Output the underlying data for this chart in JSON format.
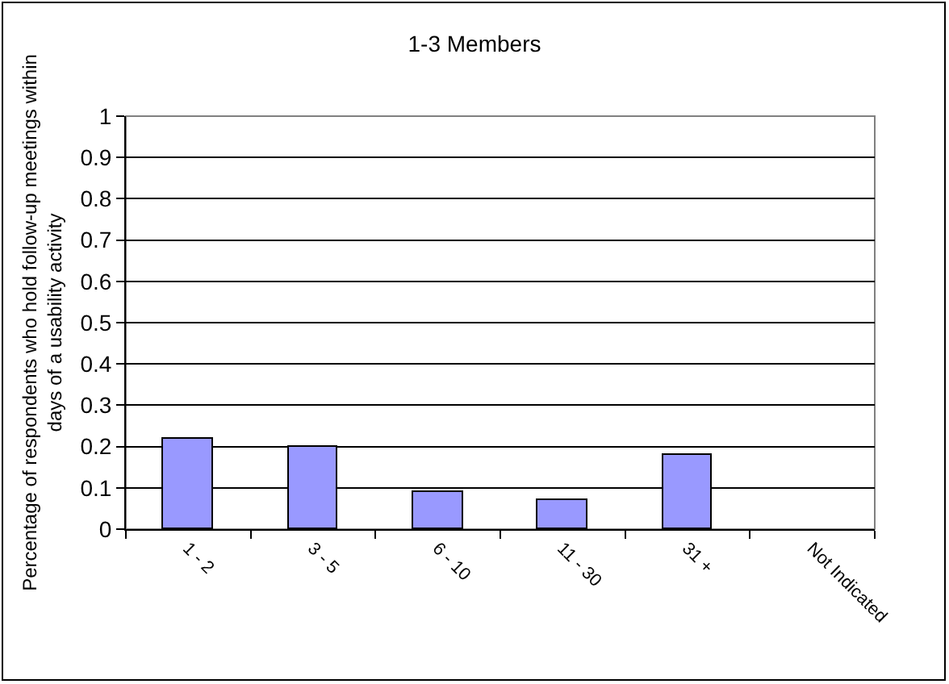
{
  "chart_data": {
    "type": "bar",
    "title": "1-3 Members",
    "ylabel": "Percentage of respondents who hold follow-up meetings within days of a usability activity",
    "categories": [
      "1 - 2",
      "3 - 5",
      "6 - 10",
      "11 - 30",
      "31 +",
      "Not Indicated"
    ],
    "values": [
      0.22,
      0.2,
      0.09,
      0.07,
      0.18,
      null
    ],
    "color": "#9999ff",
    "ylim": [
      0,
      1
    ],
    "yticks": [
      0,
      0.1,
      0.2,
      0.3,
      0.4,
      0.5,
      0.6,
      0.7,
      0.8,
      0.9,
      1
    ],
    "grid": "y"
  }
}
